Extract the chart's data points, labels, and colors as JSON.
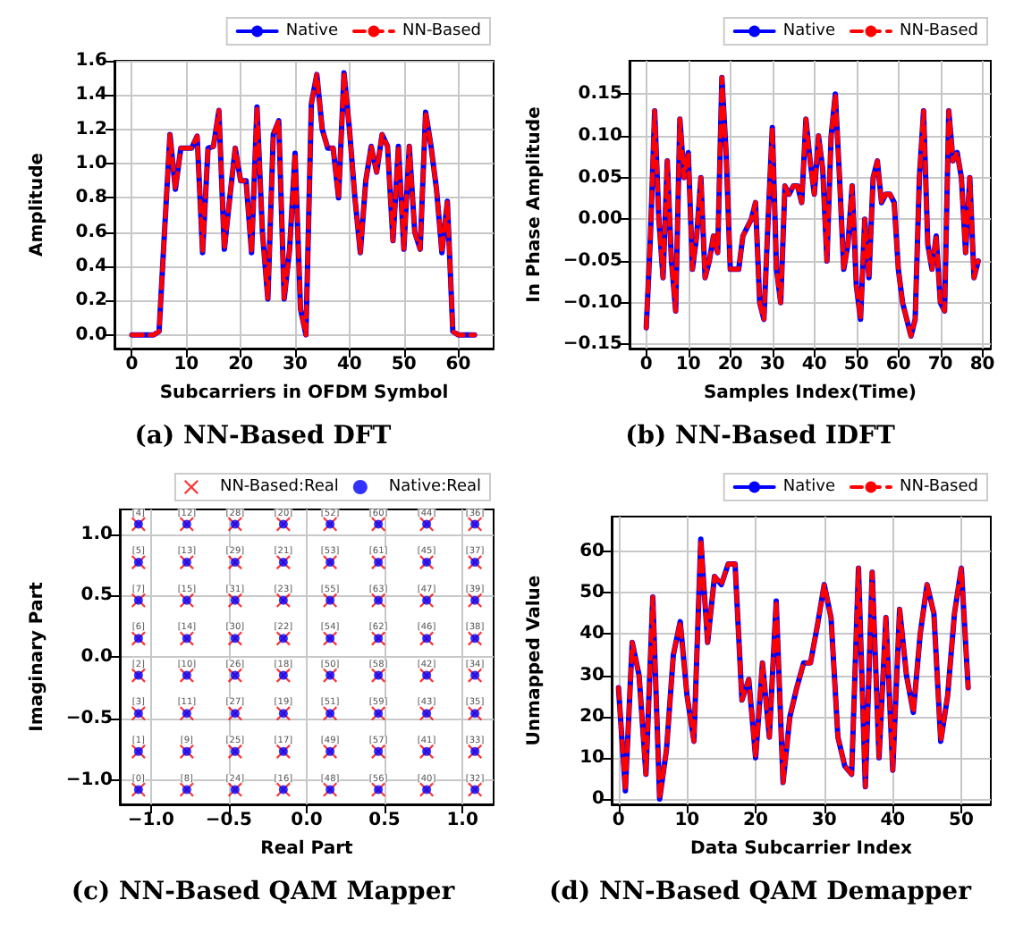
{
  "chart_data": [
    {
      "type": "line",
      "title": "(a) NN-Based DFT",
      "xlabel": "Subcarriers in OFDM Symbol",
      "ylabel": "Amplitude",
      "grid": true,
      "legend": "top right",
      "marker": "none",
      "xlim": [
        -3.2,
        66.5
      ],
      "xticks": [
        0,
        10,
        20,
        30,
        40,
        50,
        60
      ],
      "ylim": [
        -0.08,
        1.6
      ],
      "yticks": [
        {
          "value": 0,
          "label": "0.0"
        },
        {
          "value": 0.2,
          "label": "0.2"
        },
        {
          "value": 0.4,
          "label": "0.4"
        },
        {
          "value": 0.6,
          "label": "0.6"
        },
        {
          "value": 0.8,
          "label": "0.8"
        },
        {
          "value": 1,
          "label": "1.0"
        },
        {
          "value": 1.2,
          "label": "1.2"
        },
        {
          "value": 1.4,
          "label": "1.4"
        },
        {
          "value": 1.6,
          "label": "1.6"
        }
      ],
      "x": [
        0,
        1,
        2,
        3,
        4,
        5,
        6,
        7,
        8,
        9,
        10,
        11,
        12,
        13,
        14,
        15,
        16,
        17,
        18,
        19,
        20,
        21,
        22,
        23,
        24,
        25,
        26,
        27,
        28,
        29,
        30,
        31,
        32,
        33,
        34,
        35,
        36,
        37,
        38,
        39,
        40,
        41,
        42,
        43,
        44,
        45,
        46,
        47,
        48,
        49,
        50,
        51,
        52,
        53,
        54,
        55,
        56,
        57,
        58,
        59,
        60,
        61,
        62,
        63
      ],
      "series": [
        {
          "name": "Native",
          "color": "#0000ff",
          "line_style": "solid",
          "values": [
            0,
            0,
            0,
            0,
            0,
            0.02,
            0.6,
            1.17,
            0.85,
            1.09,
            1.09,
            1.09,
            1.16,
            0.48,
            1.09,
            1.1,
            1.31,
            0.5,
            0.8,
            1.09,
            0.9,
            0.9,
            0.48,
            1.33,
            0.6,
            0.21,
            1.17,
            1.25,
            0.21,
            0.5,
            1.06,
            0.15,
            0,
            1.35,
            1.52,
            1.2,
            1.09,
            1.09,
            0.8,
            1.53,
            1.2,
            0.8,
            0.48,
            0.9,
            1.1,
            0.95,
            1.17,
            1.1,
            0.55,
            1.1,
            0.5,
            1.1,
            0.6,
            0.5,
            1.3,
            1.1,
            0.85,
            0.48,
            0.78,
            0.02,
            0,
            0,
            0,
            0
          ]
        },
        {
          "name": "NN-Based",
          "color": "#ff0000",
          "line_style": "dashed",
          "values": [
            0,
            0,
            0,
            0,
            0,
            0.02,
            0.6,
            1.17,
            0.85,
            1.09,
            1.09,
            1.09,
            1.16,
            0.48,
            1.09,
            1.1,
            1.31,
            0.5,
            0.8,
            1.09,
            0.9,
            0.9,
            0.48,
            1.33,
            0.6,
            0.21,
            1.17,
            1.25,
            0.21,
            0.5,
            1.06,
            0.15,
            0,
            1.35,
            1.52,
            1.2,
            1.09,
            1.09,
            0.8,
            1.53,
            1.2,
            0.8,
            0.48,
            0.9,
            1.1,
            0.95,
            1.17,
            1.1,
            0.55,
            1.1,
            0.5,
            1.1,
            0.6,
            0.5,
            1.3,
            1.1,
            0.85,
            0.48,
            0.78,
            0.02,
            0,
            0,
            0,
            0
          ]
        }
      ]
    },
    {
      "type": "line",
      "title": "(b) NN-Based IDFT",
      "xlabel": "Samples Index(Time)",
      "ylabel": "In Phase Amplitude",
      "grid": true,
      "legend": "top right",
      "marker": "none",
      "xlim": [
        -4,
        82
      ],
      "xticks": [
        0,
        10,
        20,
        30,
        40,
        50,
        60,
        70,
        80
      ],
      "ylim": [
        -0.155,
        0.19
      ],
      "yticks": [
        {
          "value": -0.15,
          "label": "−0.15"
        },
        {
          "value": -0.1,
          "label": "−0.10"
        },
        {
          "value": -0.05,
          "label": "−0.05"
        },
        {
          "value": 0,
          "label": "0.00"
        },
        {
          "value": 0.05,
          "label": "0.05"
        },
        {
          "value": 0.1,
          "label": "0.10"
        },
        {
          "value": 0.15,
          "label": "0.15"
        }
      ],
      "x": [
        0,
        1,
        2,
        3,
        4,
        5,
        6,
        7,
        8,
        9,
        10,
        11,
        12,
        13,
        14,
        15,
        16,
        17,
        18,
        19,
        20,
        21,
        22,
        23,
        24,
        25,
        26,
        27,
        28,
        29,
        30,
        31,
        32,
        33,
        34,
        35,
        36,
        37,
        38,
        39,
        40,
        41,
        42,
        43,
        44,
        45,
        46,
        47,
        48,
        49,
        50,
        51,
        52,
        53,
        54,
        55,
        56,
        57,
        58,
        59,
        60,
        61,
        62,
        63,
        64,
        65,
        66,
        67,
        68,
        69,
        70,
        71,
        72,
        73,
        74,
        75,
        76,
        77,
        78,
        79
      ],
      "series": [
        {
          "name": "Native",
          "color": "#0000ff",
          "line_style": "solid",
          "values": [
            -0.13,
            -0.02,
            0.13,
            0.0,
            -0.07,
            0.07,
            -0.05,
            -0.11,
            0.12,
            0.05,
            0.08,
            -0.06,
            -0.02,
            0.05,
            -0.07,
            -0.05,
            -0.02,
            -0.04,
            0.17,
            0.08,
            -0.06,
            -0.06,
            -0.06,
            -0.02,
            -0.01,
            0.0,
            0.02,
            -0.1,
            -0.12,
            0.0,
            0.11,
            -0.06,
            -0.1,
            0.04,
            0.03,
            0.04,
            0.04,
            0.02,
            0.12,
            0.07,
            0.03,
            0.1,
            0.06,
            -0.05,
            0.1,
            0.15,
            0.05,
            -0.06,
            -0.03,
            0.04,
            -0.08,
            -0.12,
            0.0,
            -0.07,
            0.05,
            0.07,
            0.02,
            0.03,
            0.03,
            0.02,
            -0.06,
            -0.1,
            -0.12,
            -0.14,
            -0.12,
            0.05,
            0.13,
            -0.03,
            -0.06,
            -0.02,
            -0.1,
            -0.11,
            0.13,
            0.07,
            0.08,
            0.05,
            -0.04,
            0.05,
            -0.07,
            -0.05
          ]
        },
        {
          "name": "NN-Based",
          "color": "#ff0000",
          "line_style": "dashed",
          "values": [
            -0.13,
            -0.02,
            0.13,
            0.0,
            -0.07,
            0.07,
            -0.05,
            -0.11,
            0.12,
            0.05,
            0.08,
            -0.06,
            -0.02,
            0.05,
            -0.07,
            -0.05,
            -0.02,
            -0.04,
            0.17,
            0.08,
            -0.06,
            -0.06,
            -0.06,
            -0.02,
            -0.01,
            0.0,
            0.02,
            -0.1,
            -0.12,
            0.0,
            0.11,
            -0.06,
            -0.1,
            0.04,
            0.03,
            0.04,
            0.04,
            0.02,
            0.12,
            0.07,
            0.03,
            0.1,
            0.06,
            -0.05,
            0.1,
            0.15,
            0.05,
            -0.06,
            -0.03,
            0.04,
            -0.08,
            -0.12,
            0.0,
            -0.07,
            0.05,
            0.07,
            0.02,
            0.03,
            0.03,
            0.02,
            -0.06,
            -0.1,
            -0.12,
            -0.14,
            -0.12,
            0.05,
            0.13,
            -0.03,
            -0.06,
            -0.02,
            -0.1,
            -0.11,
            0.13,
            0.07,
            0.08,
            0.05,
            -0.04,
            0.05,
            -0.07,
            -0.05
          ]
        }
      ]
    },
    {
      "type": "scatter",
      "title": "(c) NN-Based QAM Mapper",
      "xlabel": "Real Part",
      "ylabel": "Imaginary Part",
      "grid": true,
      "legend": "top right",
      "annotations": [
        {
          "text": "[4]",
          "x": -1.08,
          "y": 1.08
        },
        {
          "text": "[5]",
          "x": -1.08,
          "y": 0.77
        },
        {
          "text": "[7]",
          "x": -1.08,
          "y": 0.46
        },
        {
          "text": "[6]",
          "x": -1.08,
          "y": 0.15
        },
        {
          "text": "[2]",
          "x": -1.08,
          "y": -0.15
        },
        {
          "text": "[3]",
          "x": -1.08,
          "y": -0.46
        },
        {
          "text": "[1]",
          "x": -1.08,
          "y": -0.77
        },
        {
          "text": "[0]",
          "x": -1.08,
          "y": -1.08
        },
        {
          "text": "[12]",
          "x": -0.77,
          "y": 1.08
        },
        {
          "text": "[13]",
          "x": -0.77,
          "y": 0.77
        },
        {
          "text": "[15]",
          "x": -0.77,
          "y": 0.46
        },
        {
          "text": "[14]",
          "x": -0.77,
          "y": 0.15
        },
        {
          "text": "[10]",
          "x": -0.77,
          "y": -0.15
        },
        {
          "text": "[11]",
          "x": -0.77,
          "y": -0.46
        },
        {
          "text": "[9]",
          "x": -0.77,
          "y": -0.77
        },
        {
          "text": "[8]",
          "x": -0.77,
          "y": -1.08
        },
        {
          "text": "[28]",
          "x": -0.46,
          "y": 1.08
        },
        {
          "text": "[29]",
          "x": -0.46,
          "y": 0.77
        },
        {
          "text": "[31]",
          "x": -0.46,
          "y": 0.46
        },
        {
          "text": "[30]",
          "x": -0.46,
          "y": 0.15
        },
        {
          "text": "[26]",
          "x": -0.46,
          "y": -0.15
        },
        {
          "text": "[27]",
          "x": -0.46,
          "y": -0.46
        },
        {
          "text": "[25]",
          "x": -0.46,
          "y": -0.77
        },
        {
          "text": "[24]",
          "x": -0.46,
          "y": -1.08
        },
        {
          "text": "[20]",
          "x": -0.15,
          "y": 1.08
        },
        {
          "text": "[21]",
          "x": -0.15,
          "y": 0.77
        },
        {
          "text": "[23]",
          "x": -0.15,
          "y": 0.46
        },
        {
          "text": "[22]",
          "x": -0.15,
          "y": 0.15
        },
        {
          "text": "[18]",
          "x": -0.15,
          "y": -0.15
        },
        {
          "text": "[19]",
          "x": -0.15,
          "y": -0.46
        },
        {
          "text": "[17]",
          "x": -0.15,
          "y": -0.77
        },
        {
          "text": "[16]",
          "x": -0.15,
          "y": -1.08
        },
        {
          "text": "[52]",
          "x": 0.15,
          "y": 1.08
        },
        {
          "text": "[53]",
          "x": 0.15,
          "y": 0.77
        },
        {
          "text": "[55]",
          "x": 0.15,
          "y": 0.46
        },
        {
          "text": "[54]",
          "x": 0.15,
          "y": 0.15
        },
        {
          "text": "[50]",
          "x": 0.15,
          "y": -0.15
        },
        {
          "text": "[51]",
          "x": 0.15,
          "y": -0.46
        },
        {
          "text": "[49]",
          "x": 0.15,
          "y": -0.77
        },
        {
          "text": "[48]",
          "x": 0.15,
          "y": -1.08
        },
        {
          "text": "[60]",
          "x": 0.46,
          "y": 1.08
        },
        {
          "text": "[61]",
          "x": 0.46,
          "y": 0.77
        },
        {
          "text": "[63]",
          "x": 0.46,
          "y": 0.46
        },
        {
          "text": "[62]",
          "x": 0.46,
          "y": 0.15
        },
        {
          "text": "[58]",
          "x": 0.46,
          "y": -0.15
        },
        {
          "text": "[59]",
          "x": 0.46,
          "y": -0.46
        },
        {
          "text": "[57]",
          "x": 0.46,
          "y": -0.77
        },
        {
          "text": "[56]",
          "x": 0.46,
          "y": -1.08
        },
        {
          "text": "[44]",
          "x": 0.77,
          "y": 1.08
        },
        {
          "text": "[45]",
          "x": 0.77,
          "y": 0.77
        },
        {
          "text": "[47]",
          "x": 0.77,
          "y": 0.46
        },
        {
          "text": "[46]",
          "x": 0.77,
          "y": 0.15
        },
        {
          "text": "[42]",
          "x": 0.77,
          "y": -0.15
        },
        {
          "text": "[43]",
          "x": 0.77,
          "y": -0.46
        },
        {
          "text": "[41]",
          "x": 0.77,
          "y": -0.77
        },
        {
          "text": "[40]",
          "x": 0.77,
          "y": -1.08
        },
        {
          "text": "[36]",
          "x": 1.08,
          "y": 1.08
        },
        {
          "text": "[37]",
          "x": 1.08,
          "y": 0.77
        },
        {
          "text": "[39]",
          "x": 1.08,
          "y": 0.46
        },
        {
          "text": "[38]",
          "x": 1.08,
          "y": 0.15
        },
        {
          "text": "[34]",
          "x": 1.08,
          "y": -0.15
        },
        {
          "text": "[35]",
          "x": 1.08,
          "y": -0.46
        },
        {
          "text": "[33]",
          "x": 1.08,
          "y": -0.77
        },
        {
          "text": "[32]",
          "x": 1.08,
          "y": -1.08
        }
      ],
      "xlim": [
        -1.2,
        1.2
      ],
      "xticks": [
        {
          "value": -1,
          "label": "−1.0"
        },
        {
          "value": -0.5,
          "label": "−0.5"
        },
        {
          "value": 0,
          "label": "0.0"
        },
        {
          "value": 0.5,
          "label": "0.5"
        },
        {
          "value": 1,
          "label": "1.0"
        }
      ],
      "ylim": [
        -1.2,
        1.2
      ],
      "yticks": [
        {
          "value": -1,
          "label": "−1.0"
        },
        {
          "value": -0.5,
          "label": "−0.5"
        },
        {
          "value": 0,
          "label": "0.0"
        },
        {
          "value": 0.5,
          "label": "0.5"
        },
        {
          "value": 1,
          "label": "1.0"
        }
      ],
      "series": [
        {
          "name": "NN-Based:Real",
          "color": "#ff0000",
          "marker": "cross",
          "x": [
            -1.08,
            -1.08,
            -1.08,
            -1.08,
            -1.08,
            -1.08,
            -1.08,
            -1.08,
            -0.77,
            -0.77,
            -0.77,
            -0.77,
            -0.77,
            -0.77,
            -0.77,
            -0.77,
            -0.46,
            -0.46,
            -0.46,
            -0.46,
            -0.46,
            -0.46,
            -0.46,
            -0.46,
            -0.15,
            -0.15,
            -0.15,
            -0.15,
            -0.15,
            -0.15,
            -0.15,
            -0.15,
            0.15,
            0.15,
            0.15,
            0.15,
            0.15,
            0.15,
            0.15,
            0.15,
            0.46,
            0.46,
            0.46,
            0.46,
            0.46,
            0.46,
            0.46,
            0.46,
            0.77,
            0.77,
            0.77,
            0.77,
            0.77,
            0.77,
            0.77,
            0.77,
            1.08,
            1.08,
            1.08,
            1.08,
            1.08,
            1.08,
            1.08,
            1.08
          ],
          "values": [
            1.08,
            0.77,
            0.46,
            0.15,
            -0.15,
            -0.46,
            -0.77,
            -1.08,
            1.08,
            0.77,
            0.46,
            0.15,
            -0.15,
            -0.46,
            -0.77,
            -1.08,
            1.08,
            0.77,
            0.46,
            0.15,
            -0.15,
            -0.46,
            -0.77,
            -1.08,
            1.08,
            0.77,
            0.46,
            0.15,
            -0.15,
            -0.46,
            -0.77,
            -1.08,
            1.08,
            0.77,
            0.46,
            0.15,
            -0.15,
            -0.46,
            -0.77,
            -1.08,
            1.08,
            0.77,
            0.46,
            0.15,
            -0.15,
            -0.46,
            -0.77,
            -1.08,
            1.08,
            0.77,
            0.46,
            0.15,
            -0.15,
            -0.46,
            -0.77,
            -1.08,
            1.08,
            0.77,
            0.46,
            0.15,
            -0.15,
            -0.46,
            -0.77,
            -1.08
          ]
        },
        {
          "name": "Native:Real",
          "color": "#0000ff",
          "marker": "circle",
          "x": [
            -1.08,
            -1.08,
            -1.08,
            -1.08,
            -1.08,
            -1.08,
            -1.08,
            -1.08,
            -0.77,
            -0.77,
            -0.77,
            -0.77,
            -0.77,
            -0.77,
            -0.77,
            -0.77,
            -0.46,
            -0.46,
            -0.46,
            -0.46,
            -0.46,
            -0.46,
            -0.46,
            -0.46,
            -0.15,
            -0.15,
            -0.15,
            -0.15,
            -0.15,
            -0.15,
            -0.15,
            -0.15,
            0.15,
            0.15,
            0.15,
            0.15,
            0.15,
            0.15,
            0.15,
            0.15,
            0.46,
            0.46,
            0.46,
            0.46,
            0.46,
            0.46,
            0.46,
            0.46,
            0.77,
            0.77,
            0.77,
            0.77,
            0.77,
            0.77,
            0.77,
            0.77,
            1.08,
            1.08,
            1.08,
            1.08,
            1.08,
            1.08,
            1.08,
            1.08
          ],
          "values": [
            1.08,
            0.77,
            0.46,
            0.15,
            -0.15,
            -0.46,
            -0.77,
            -1.08,
            1.08,
            0.77,
            0.46,
            0.15,
            -0.15,
            -0.46,
            -0.77,
            -1.08,
            1.08,
            0.77,
            0.46,
            0.15,
            -0.15,
            -0.46,
            -0.77,
            -1.08,
            1.08,
            0.77,
            0.46,
            0.15,
            -0.15,
            -0.46,
            -0.77,
            -1.08,
            1.08,
            0.77,
            0.46,
            0.15,
            -0.15,
            -0.46,
            -0.77,
            -1.08,
            1.08,
            0.77,
            0.46,
            0.15,
            -0.15,
            -0.46,
            -0.77,
            -1.08,
            1.08,
            0.77,
            0.46,
            0.15,
            -0.15,
            -0.46,
            -0.77,
            -1.08,
            1.08,
            0.77,
            0.46,
            0.15,
            -0.15,
            -0.46,
            -0.77,
            -1.08
          ]
        }
      ]
    },
    {
      "type": "line",
      "title": "(d) NN-Based QAM Demapper",
      "xlabel": "Data Subcarrier Index",
      "ylabel": "Unmapped Value",
      "grid": true,
      "legend": "top right",
      "marker": "none",
      "xlim": [
        -1,
        54.3
      ],
      "xticks": [
        0,
        10,
        20,
        30,
        40,
        50
      ],
      "ylim": [
        -1.3,
        68.5
      ],
      "yticks": [
        0,
        10,
        20,
        30,
        40,
        50,
        60
      ],
      "x": [
        0,
        1,
        2,
        3,
        4,
        5,
        6,
        7,
        8,
        9,
        10,
        11,
        12,
        13,
        14,
        15,
        16,
        17,
        18,
        19,
        20,
        21,
        22,
        23,
        24,
        25,
        26,
        27,
        28,
        29,
        30,
        31,
        32,
        33,
        34,
        35,
        36,
        37,
        38,
        39,
        40,
        41,
        42,
        43,
        44,
        45,
        46,
        47,
        48,
        49,
        50,
        51
      ],
      "series": [
        {
          "name": "Native",
          "color": "#0000ff",
          "line_style": "solid",
          "values": [
            27,
            2,
            38,
            30,
            6,
            49,
            0,
            12,
            35,
            43,
            25,
            14,
            63,
            38,
            54,
            52,
            57,
            57,
            24,
            29,
            10,
            33,
            15,
            48,
            4,
            20,
            27,
            33,
            33,
            42,
            52,
            44,
            15,
            8,
            6,
            56,
            3,
            55,
            10,
            44,
            7,
            46,
            30,
            21,
            40,
            52,
            45,
            14,
            25,
            45,
            56,
            27
          ]
        },
        {
          "name": "NN-Based",
          "color": "#ff0000",
          "line_style": "dashed",
          "values": [
            27,
            2,
            38,
            30,
            6,
            49,
            0,
            12,
            35,
            43,
            25,
            14,
            63,
            38,
            54,
            52,
            57,
            57,
            24,
            29,
            10,
            33,
            15,
            48,
            4,
            20,
            27,
            33,
            33,
            42,
            52,
            44,
            15,
            8,
            6,
            56,
            3,
            55,
            10,
            44,
            7,
            46,
            30,
            21,
            40,
            52,
            45,
            14,
            25,
            45,
            56,
            27
          ]
        }
      ]
    }
  ]
}
